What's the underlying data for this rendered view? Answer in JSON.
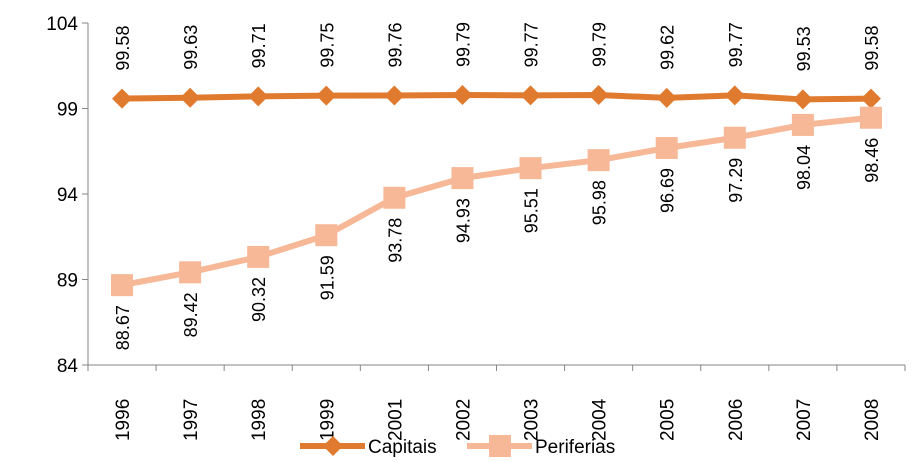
{
  "chart_data": {
    "type": "line",
    "categories": [
      "1996",
      "1997",
      "1998",
      "1999",
      "2001",
      "2002",
      "2003",
      "2004",
      "2005",
      "2006",
      "2007",
      "2008"
    ],
    "series": [
      {
        "name": "Capitais",
        "color": "#E07A2E",
        "marker": "diamond",
        "values": [
          99.58,
          99.63,
          99.71,
          99.75,
          99.76,
          99.79,
          99.77,
          99.79,
          99.62,
          99.77,
          99.53,
          99.58
        ],
        "labels": [
          "99.58",
          "99.63",
          "99.71",
          "99.75",
          "99.76",
          "99.79",
          "99.77",
          "99.79",
          "99.62",
          "99.77",
          "99.53",
          "99.58"
        ]
      },
      {
        "name": "Periferias",
        "color": "#F6B896",
        "marker": "square",
        "values": [
          88.67,
          89.42,
          90.32,
          91.59,
          93.78,
          94.93,
          95.51,
          95.98,
          96.69,
          97.29,
          98.04,
          98.46
        ],
        "labels": [
          "88.67",
          "89.42",
          "90.32",
          "91.59",
          "93.78",
          "94.93",
          "95.51",
          "95.98",
          "96.69",
          "97.29",
          "98.04",
          "98.46"
        ]
      }
    ],
    "yticks": [
      "104",
      "99",
      "94",
      "89",
      "84"
    ],
    "ylim": [
      84,
      104
    ],
    "grid": false,
    "legend": "bottom",
    "title": "",
    "xlabel": "",
    "ylabel": ""
  }
}
